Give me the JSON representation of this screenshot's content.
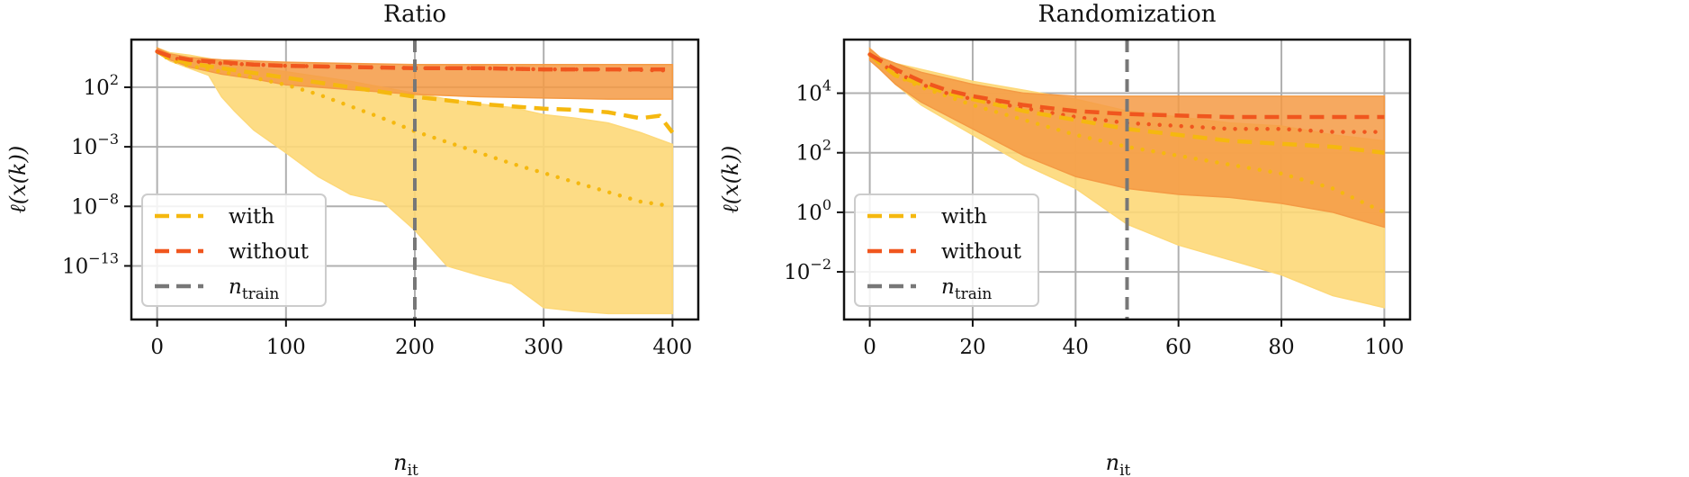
{
  "colors": {
    "with": "#f5b80f",
    "with_band": "#fdd878",
    "without": "#f0561e",
    "without_band": "#f49a44",
    "ntrain": "#777777",
    "grid": "#b0b0b0"
  },
  "chart_data": [
    {
      "type": "line",
      "title": "Ratio",
      "xlabel": "n",
      "xlabel_sub": "it",
      "ylabel": "ℓ(x(k))",
      "yscale": "log",
      "xlim": [
        -20,
        420
      ],
      "ylim_exp": [
        -17.5,
        6
      ],
      "xticks": [
        0,
        100,
        200,
        300,
        400
      ],
      "xtick_labels": [
        "0",
        "100",
        "200",
        "300",
        "400"
      ],
      "yticks_exp": [
        2,
        -3,
        -8,
        -13
      ],
      "ytick_labels": [
        "10",
        "10",
        "10",
        "10"
      ],
      "ytick_exponents": [
        "2",
        "−3",
        "−8",
        "−13"
      ],
      "grid": true,
      "vline": {
        "x": 200,
        "label": "n",
        "label_sub": "train"
      },
      "legend": {
        "position": "lower-left",
        "entries": [
          {
            "label": "with",
            "series": "with"
          },
          {
            "label": "without",
            "series": "without"
          },
          {
            "label": "n",
            "label_sub": "train",
            "series": "ntrain"
          }
        ]
      },
      "series": [
        {
          "name": "with",
          "style": "dashed",
          "x": [
            0,
            10,
            25,
            50,
            75,
            100,
            125,
            150,
            175,
            200,
            225,
            250,
            275,
            300,
            325,
            350,
            375,
            390,
            400
          ],
          "log10_y": [
            5.0,
            4.4,
            4.0,
            3.6,
            3.2,
            2.8,
            2.4,
            2.0,
            1.6,
            1.2,
            0.9,
            0.6,
            0.4,
            0.2,
            0.1,
            -0.1,
            -0.6,
            -0.4,
            -1.8
          ]
        },
        {
          "name": "with_median",
          "style": "dotted",
          "x": [
            0,
            10,
            25,
            50,
            75,
            100,
            125,
            150,
            175,
            200,
            225,
            250,
            275,
            300,
            325,
            350,
            375,
            400
          ],
          "log10_y": [
            5.0,
            4.3,
            3.8,
            3.3,
            2.8,
            2.2,
            1.4,
            0.4,
            -0.6,
            -1.7,
            -2.6,
            -3.5,
            -4.4,
            -5.2,
            -6.0,
            -6.8,
            -7.6,
            -8.0
          ]
        },
        {
          "name": "with_band",
          "style": "band",
          "x": [
            0,
            10,
            25,
            40,
            50,
            60,
            75,
            100,
            125,
            150,
            175,
            200,
            225,
            250,
            275,
            300,
            325,
            350,
            375,
            400
          ],
          "log10_lo": [
            4.9,
            4.2,
            3.6,
            3.0,
            1.2,
            0.0,
            -1.6,
            -3.5,
            -5.5,
            -7.0,
            -7.6,
            -10.0,
            -13.0,
            -13.8,
            -14.5,
            -16.5,
            -16.8,
            -17.0,
            -17.0,
            -17.0
          ],
          "log10_hi": [
            5.3,
            4.9,
            4.7,
            4.4,
            4.2,
            4.0,
            3.7,
            3.3,
            2.9,
            2.5,
            2.0,
            1.5,
            1.0,
            0.6,
            0.3,
            -0.3,
            -0.6,
            -1.0,
            -1.8,
            -2.8
          ]
        },
        {
          "name": "without",
          "style": "dashed",
          "x": [
            0,
            10,
            25,
            50,
            75,
            100,
            150,
            200,
            250,
            300,
            350,
            400
          ],
          "log10_y": [
            5.0,
            4.6,
            4.3,
            4.1,
            3.9,
            3.8,
            3.7,
            3.6,
            3.6,
            3.5,
            3.5,
            3.5
          ]
        },
        {
          "name": "without_median",
          "style": "dotted",
          "x": [
            0,
            10,
            25,
            50,
            100,
            150,
            200,
            250,
            300,
            350,
            400
          ],
          "log10_y": [
            5.0,
            4.5,
            4.2,
            4.0,
            3.8,
            3.7,
            3.6,
            3.6,
            3.5,
            3.5,
            3.4
          ]
        },
        {
          "name": "without_band",
          "style": "band",
          "x": [
            0,
            10,
            25,
            50,
            75,
            100,
            150,
            200,
            250,
            300,
            350,
            400
          ],
          "log10_lo": [
            4.9,
            4.3,
            3.7,
            3.1,
            2.7,
            2.2,
            1.8,
            1.4,
            1.2,
            1.1,
            1.0,
            1.0
          ],
          "log10_hi": [
            5.3,
            4.8,
            4.5,
            4.3,
            4.2,
            4.1,
            4.0,
            3.9,
            3.9,
            3.9,
            3.9,
            3.9
          ]
        }
      ]
    },
    {
      "type": "line",
      "title": "Randomization",
      "xlabel": "n",
      "xlabel_sub": "it",
      "ylabel": "ℓ(x(k))",
      "yscale": "log",
      "xlim": [
        -5,
        105
      ],
      "ylim_exp": [
        -3.6,
        5.8
      ],
      "xticks": [
        0,
        20,
        40,
        60,
        80,
        100
      ],
      "xtick_labels": [
        "0",
        "20",
        "40",
        "60",
        "80",
        "100"
      ],
      "yticks_exp": [
        4,
        2,
        0,
        -2
      ],
      "ytick_labels": [
        "10",
        "10",
        "10",
        "10"
      ],
      "ytick_exponents": [
        "4",
        "2",
        "0",
        "−2"
      ],
      "grid": true,
      "vline": {
        "x": 50,
        "label": "n",
        "label_sub": "train"
      },
      "legend": {
        "position": "lower-left",
        "entries": [
          {
            "label": "with",
            "series": "with"
          },
          {
            "label": "without",
            "series": "without"
          },
          {
            "label": "n",
            "label_sub": "train",
            "series": "ntrain"
          }
        ]
      },
      "series": [
        {
          "name": "with",
          "style": "dashed",
          "x": [
            0,
            2,
            5,
            10,
            15,
            20,
            30,
            40,
            50,
            60,
            70,
            80,
            90,
            95,
            100
          ],
          "log10_y": [
            5.3,
            5.0,
            4.6,
            4.3,
            4.0,
            3.8,
            3.4,
            3.1,
            2.8,
            2.6,
            2.4,
            2.3,
            2.2,
            2.1,
            2.0
          ]
        },
        {
          "name": "with_median",
          "style": "dotted",
          "x": [
            0,
            2,
            5,
            10,
            15,
            20,
            30,
            40,
            50,
            60,
            70,
            80,
            90,
            100
          ],
          "log10_y": [
            5.3,
            5.0,
            4.6,
            4.2,
            3.9,
            3.6,
            3.1,
            2.6,
            2.2,
            1.9,
            1.6,
            1.3,
            0.8,
            0.0
          ]
        },
        {
          "name": "with_band",
          "style": "band",
          "x": [
            0,
            2,
            5,
            10,
            20,
            30,
            40,
            50,
            60,
            70,
            80,
            90,
            100
          ],
          "log10_lo": [
            5.2,
            4.8,
            4.3,
            3.6,
            2.6,
            1.6,
            0.8,
            -0.4,
            -1.1,
            -1.6,
            -2.1,
            -2.8,
            -3.2
          ],
          "log10_hi": [
            5.5,
            5.2,
            5.0,
            4.8,
            4.4,
            4.1,
            3.8,
            3.4,
            3.2,
            3.0,
            2.9,
            2.6,
            2.4
          ]
        },
        {
          "name": "without",
          "style": "dashed",
          "x": [
            0,
            2,
            5,
            10,
            15,
            20,
            30,
            40,
            50,
            60,
            70,
            80,
            90,
            100
          ],
          "log10_y": [
            5.3,
            5.1,
            4.8,
            4.4,
            4.1,
            3.9,
            3.6,
            3.4,
            3.3,
            3.25,
            3.2,
            3.2,
            3.2,
            3.2
          ]
        },
        {
          "name": "without_median",
          "style": "dotted",
          "x": [
            0,
            2,
            5,
            10,
            15,
            20,
            30,
            40,
            50,
            60,
            70,
            80,
            90,
            100
          ],
          "log10_y": [
            5.3,
            5.0,
            4.7,
            4.3,
            4.0,
            3.8,
            3.5,
            3.2,
            3.0,
            2.9,
            2.8,
            2.8,
            2.7,
            2.7
          ]
        },
        {
          "name": "without_band",
          "style": "band",
          "x": [
            0,
            2,
            5,
            10,
            20,
            30,
            40,
            50,
            60,
            70,
            80,
            90,
            100
          ],
          "log10_lo": [
            5.1,
            4.8,
            4.3,
            3.7,
            2.8,
            1.9,
            1.2,
            0.8,
            0.6,
            0.5,
            0.3,
            0.0,
            -0.5
          ],
          "log10_hi": [
            5.5,
            5.2,
            5.0,
            4.7,
            4.3,
            4.0,
            3.9,
            3.9,
            3.9,
            3.9,
            3.9,
            3.9,
            3.9
          ]
        }
      ]
    }
  ]
}
